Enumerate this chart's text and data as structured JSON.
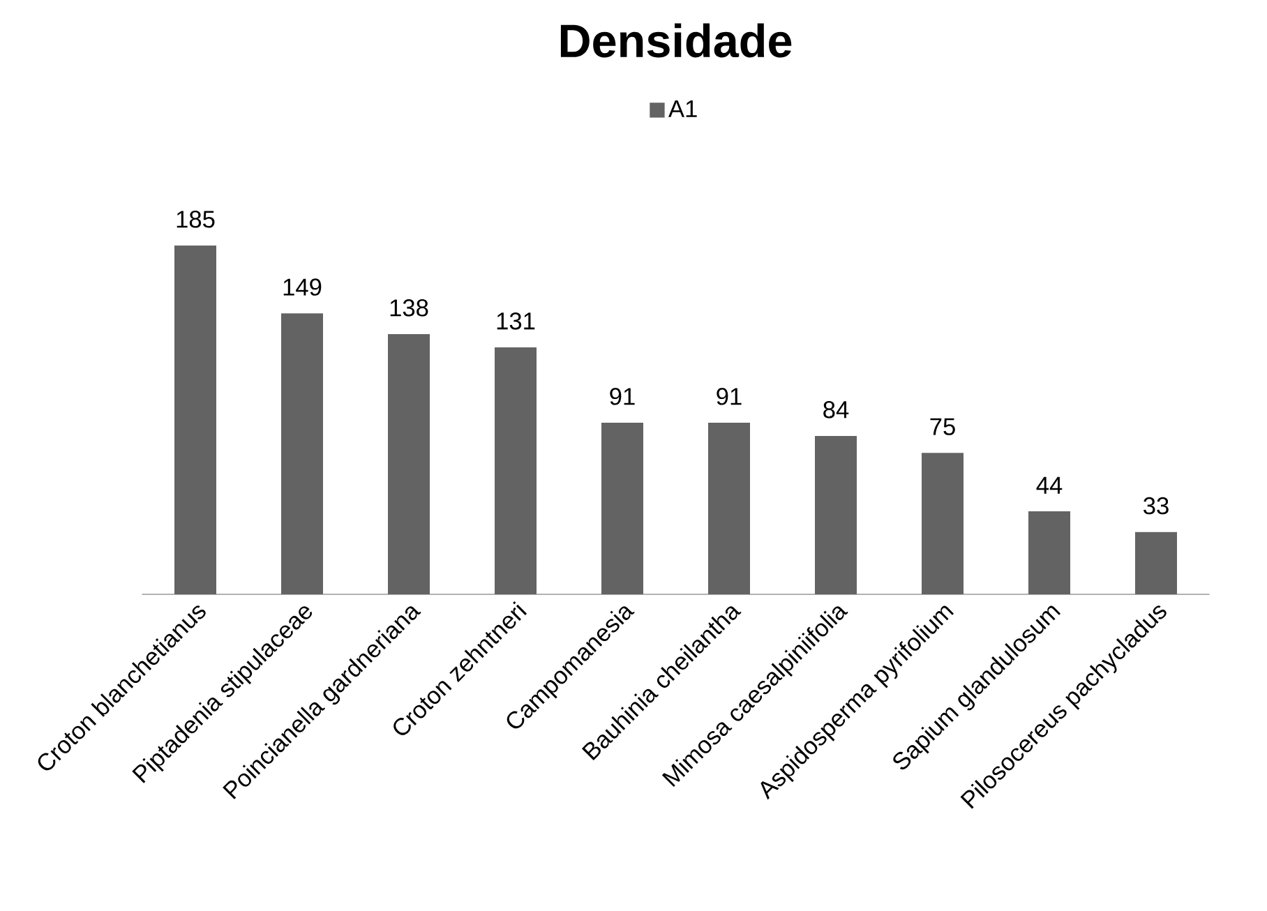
{
  "chart_data": {
    "type": "bar",
    "title": "Densidade",
    "categories": [
      "Croton blanchetianus",
      "Piptadenia stipulaceae",
      "Poincianella gardneriana",
      "Croton zehntneri",
      "Campomanesia",
      "Bauhinia cheilantha",
      "Mimosa caesalpiniifolia",
      "Aspidosperma pyrifolium",
      "Sapium glandulosum",
      "Pilosocereus pachycladus"
    ],
    "series": [
      {
        "name": "A1",
        "color": "#636363",
        "values": [
          185,
          149,
          138,
          131,
          91,
          91,
          84,
          75,
          44,
          33
        ]
      }
    ],
    "data_labels": true,
    "legend": "top"
  }
}
